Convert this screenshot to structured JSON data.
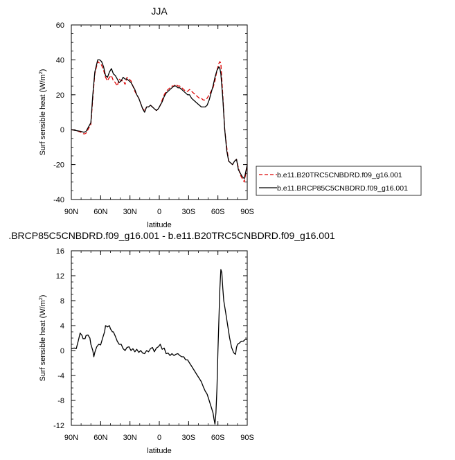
{
  "chart_data": [
    {
      "type": "line",
      "title": "JJA",
      "xlabel": "latitude",
      "ylabel": "Surf sensible heat (W/m",
      "ylabel_sup": "2",
      "ylabel_close": ")",
      "xlim": [
        90,
        -90
      ],
      "ylim": [
        -40,
        60
      ],
      "xticks": [
        90,
        60,
        30,
        0,
        -30,
        -60,
        -90
      ],
      "xtick_labels": [
        "90N",
        "60N",
        "30N",
        "0",
        "30S",
        "60S",
        "90S"
      ],
      "yticks": [
        -40,
        -20,
        0,
        20,
        40,
        60
      ],
      "ytick_labels": [
        "-40",
        "-20",
        "0",
        "20",
        "40",
        "60"
      ],
      "legend_position": "right",
      "series": [
        {
          "name": "b.e11.B20TRC5CNBDRD.f09_g16.001",
          "color": "#dd0000",
          "dash": "dashed",
          "x": [
            90,
            85,
            80,
            77,
            75,
            73,
            70,
            68,
            66,
            63,
            61,
            59,
            57,
            55,
            53,
            51,
            49,
            47,
            45,
            43,
            41,
            39,
            37,
            35,
            33,
            31,
            29,
            27,
            25,
            23,
            21,
            19,
            17,
            15,
            13,
            11,
            9,
            7,
            5,
            3,
            1,
            -1,
            -3,
            -5,
            -7,
            -9,
            -11,
            -13,
            -15,
            -17,
            -19,
            -21,
            -23,
            -25,
            -27,
            -29,
            -31,
            -33,
            -35,
            -37,
            -39,
            -41,
            -43,
            -45,
            -47,
            -49,
            -51,
            -53,
            -55,
            -57,
            -59,
            -61,
            -62,
            -63,
            -65,
            -67,
            -69,
            -71,
            -73,
            -75,
            -77,
            -79,
            -81,
            -83,
            -85,
            -87,
            -90
          ],
          "y": [
            0,
            -0.5,
            -1.5,
            -2.5,
            -2,
            0,
            3,
            18,
            32,
            39,
            38,
            37,
            34,
            30,
            28,
            30,
            31,
            28,
            27,
            25,
            29,
            28,
            28,
            26,
            30,
            29,
            28,
            25,
            22,
            20,
            18,
            15,
            12,
            11,
            13,
            13,
            14,
            13,
            12,
            11,
            12,
            14,
            17,
            20,
            22,
            23,
            24,
            25,
            25,
            26,
            25,
            25,
            24,
            23,
            22,
            22,
            23,
            22,
            21,
            20,
            19,
            18,
            18,
            17,
            17,
            18,
            20,
            22,
            24,
            28,
            34,
            38,
            39,
            38,
            20,
            0,
            -10,
            -18,
            -19,
            -20,
            -18,
            -17,
            -22,
            -26,
            -28,
            -30,
            -20
          ]
        },
        {
          "name": "b.e11.BRCP85C5CNBDRD.f09_g16.001",
          "color": "#000000",
          "dash": "solid",
          "x": [
            90,
            85,
            80,
            77,
            75,
            73,
            70,
            68,
            66,
            63,
            61,
            59,
            57,
            55,
            53,
            51,
            49,
            47,
            45,
            43,
            41,
            39,
            37,
            35,
            33,
            31,
            29,
            27,
            25,
            23,
            21,
            19,
            17,
            15,
            13,
            11,
            9,
            7,
            5,
            3,
            1,
            -1,
            -3,
            -5,
            -7,
            -9,
            -11,
            -13,
            -15,
            -17,
            -19,
            -21,
            -23,
            -25,
            -27,
            -29,
            -31,
            -33,
            -35,
            -37,
            -39,
            -41,
            -43,
            -45,
            -47,
            -49,
            -51,
            -53,
            -55,
            -57,
            -59,
            -61,
            -62,
            -63,
            -65,
            -67,
            -69,
            -71,
            -73,
            -75,
            -77,
            -79,
            -81,
            -83,
            -85,
            -87,
            -90
          ],
          "y": [
            0,
            -0.5,
            -1,
            -1.5,
            -1,
            1,
            4,
            20,
            33,
            40,
            40,
            39,
            36,
            31,
            30,
            33,
            35,
            32,
            31,
            29,
            27,
            28,
            30,
            29,
            29,
            28,
            27,
            25,
            23,
            20,
            18,
            15,
            12,
            10,
            13,
            13,
            14,
            13,
            12,
            11,
            12,
            14,
            16,
            19,
            21,
            22,
            23,
            24,
            25,
            25,
            24,
            24,
            23,
            22,
            21,
            20,
            20,
            18,
            17,
            16,
            15,
            14,
            13,
            13,
            13,
            14,
            17,
            21,
            25,
            30,
            34,
            36,
            35,
            32,
            18,
            0,
            -12,
            -18,
            -19,
            -20,
            -18,
            -17,
            -23,
            -25,
            -27,
            -28,
            -20
          ]
        }
      ]
    },
    {
      "type": "line",
      "title": ".BRCP85C5CNBDRD.f09_g16.001 - b.e11.B20TRC5CNBDRD.f09_g16.001",
      "xlabel": "latitude",
      "ylabel": "Surf sensible heat (W/m",
      "ylabel_sup": "2",
      "ylabel_close": ")",
      "xlim": [
        90,
        -90
      ],
      "ylim": [
        -12,
        16
      ],
      "xticks": [
        90,
        60,
        30,
        0,
        -30,
        -60,
        -90
      ],
      "xtick_labels": [
        "90N",
        "60N",
        "30N",
        "0",
        "30S",
        "60S",
        "90S"
      ],
      "yticks": [
        -12,
        -8,
        -4,
        0,
        4,
        8,
        12,
        16
      ],
      "ytick_labels": [
        "-12",
        "-8",
        "-4",
        "0",
        "4",
        "8",
        "12",
        "16"
      ],
      "series": [
        {
          "color": "#000000",
          "x": [
            90,
            87,
            85,
            83,
            81,
            79,
            78,
            76,
            75,
            73,
            71,
            70,
            68,
            67,
            66,
            64,
            62,
            60,
            58,
            56,
            55,
            53,
            51,
            50,
            48,
            47,
            45,
            43,
            41,
            39,
            37,
            35,
            33,
            31,
            29,
            27,
            25,
            23,
            21,
            19,
            17,
            15,
            13,
            11,
            9,
            7,
            5,
            3,
            1,
            -1,
            -3,
            -5,
            -7,
            -9,
            -11,
            -13,
            -15,
            -17,
            -19,
            -21,
            -23,
            -25,
            -27,
            -29,
            -31,
            -33,
            -35,
            -37,
            -39,
            -41,
            -43,
            -45,
            -47,
            -49,
            -51,
            -53,
            -55,
            -56,
            -57,
            -58,
            -59,
            -60,
            -61,
            -62,
            -63,
            -64,
            -65,
            -66,
            -68,
            -70,
            -72,
            -74,
            -76,
            -77,
            -78,
            -79,
            -80,
            -82,
            -84,
            -86,
            -88,
            -90
          ],
          "y": [
            0.3,
            0.4,
            0.3,
            1.5,
            2.8,
            2.4,
            1.9,
            1.9,
            2.4,
            2.5,
            2.0,
            1.0,
            0.0,
            -1.0,
            -0.3,
            0.6,
            1.0,
            0.9,
            2.0,
            3.0,
            4.0,
            3.8,
            4.0,
            3.5,
            3.0,
            3.0,
            2.3,
            1.5,
            1.0,
            1.0,
            0.3,
            0.0,
            0.5,
            0.6,
            0.0,
            0.3,
            -0.2,
            0.2,
            -0.3,
            0.0,
            -0.4,
            -0.5,
            0.0,
            -0.2,
            0.3,
            0.5,
            -0.2,
            0.4,
            0.6,
            1.0,
            0.2,
            0.4,
            -0.5,
            -0.4,
            -0.8,
            -0.5,
            -0.8,
            -0.6,
            -0.5,
            -0.8,
            -1.0,
            -1.0,
            -1.5,
            -1.5,
            -2.0,
            -2.5,
            -3.0,
            -3.5,
            -4.0,
            -4.5,
            -5.0,
            -5.8,
            -6.5,
            -7.0,
            -8.0,
            -9.0,
            -10.0,
            -11.0,
            -11.8,
            -10.0,
            -6.0,
            0.0,
            5.0,
            10.0,
            13.0,
            12.5,
            10.0,
            8.0,
            6.0,
            4.0,
            2.0,
            0.5,
            -0.3,
            -0.5,
            -0.6,
            0.5,
            1.0,
            1.2,
            1.5,
            1.5,
            1.8,
            1.8
          ]
        }
      ]
    }
  ],
  "legend": {
    "entries": [
      {
        "label": "b.e11.B20TRC5CNBDRD.f09_g16.001",
        "color": "#dd0000",
        "dash": "dashed"
      },
      {
        "label": "b.e11.BRCP85C5CNBDRD.f09_g16.001",
        "color": "#000000",
        "dash": "solid"
      }
    ]
  }
}
